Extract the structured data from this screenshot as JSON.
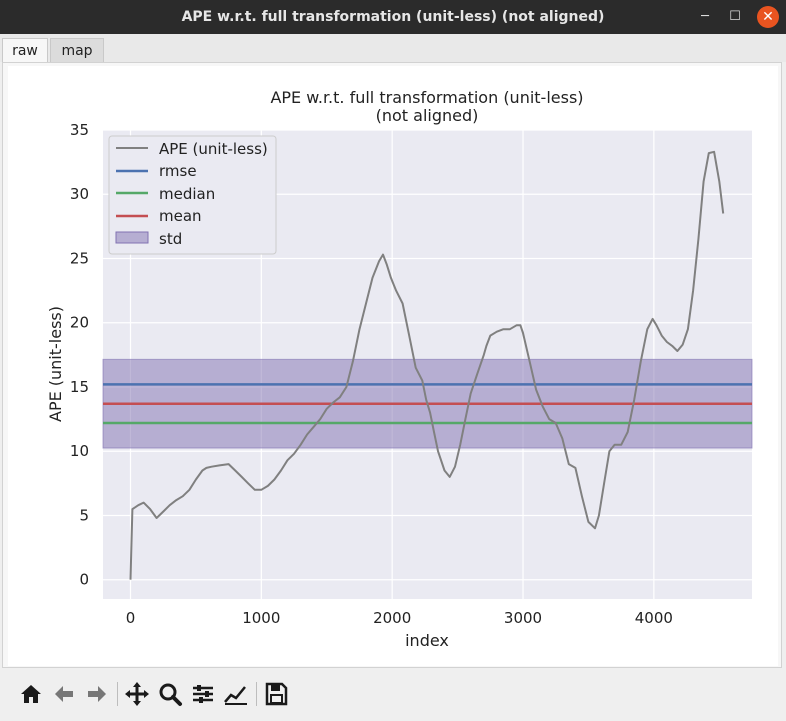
{
  "window": {
    "title": "APE w.r.t. full transformation (unit-less) (not aligned)",
    "min_icon": "─",
    "max_icon": "☐",
    "close_icon": "✕"
  },
  "tabs": [
    {
      "label": "raw"
    },
    {
      "label": "map"
    }
  ],
  "chart_data": {
    "type": "line",
    "title": "APE w.r.t. full transformation (unit-less)",
    "subtitle": "(not aligned)",
    "xlabel": "index",
    "ylabel": "APE (unit-less)",
    "xlim": [
      -210,
      4750
    ],
    "ylim": [
      -1.5,
      35
    ],
    "xticks": [
      0,
      1000,
      2000,
      3000,
      4000
    ],
    "yticks": [
      0,
      5,
      10,
      15,
      20,
      25,
      30,
      35
    ],
    "grid": true,
    "legend_position": "top-left",
    "background": "#eaeaf2",
    "series": [
      {
        "name": "APE (unit-less)",
        "color": "#808080",
        "x": [
          0,
          15,
          30,
          60,
          100,
          150,
          200,
          250,
          300,
          350,
          400,
          450,
          500,
          550,
          580,
          620,
          680,
          750,
          800,
          850,
          900,
          950,
          1000,
          1050,
          1100,
          1150,
          1200,
          1250,
          1300,
          1350,
          1400,
          1450,
          1500,
          1550,
          1600,
          1650,
          1700,
          1750,
          1800,
          1850,
          1900,
          1930,
          1960,
          1990,
          2030,
          2080,
          2130,
          2180,
          2230,
          2260,
          2290,
          2320,
          2350,
          2400,
          2440,
          2480,
          2520,
          2560,
          2600,
          2650,
          2700,
          2720,
          2750,
          2800,
          2850,
          2900,
          2950,
          2980,
          3000,
          3050,
          3100,
          3150,
          3200,
          3250,
          3300,
          3350,
          3400,
          3450,
          3500,
          3550,
          3580,
          3620,
          3660,
          3700,
          3750,
          3800,
          3850,
          3900,
          3950,
          3990,
          4020,
          4060,
          4100,
          4140,
          4180,
          4220,
          4260,
          4300,
          4340,
          4380,
          4420,
          4460,
          4500,
          4530
        ],
        "y": [
          0,
          5.5,
          5.6,
          5.8,
          6.0,
          5.5,
          4.8,
          5.3,
          5.8,
          6.2,
          6.5,
          7.0,
          7.8,
          8.5,
          8.7,
          8.8,
          8.9,
          9.0,
          8.5,
          8.0,
          7.5,
          7.0,
          7.0,
          7.3,
          7.8,
          8.5,
          9.3,
          9.8,
          10.5,
          11.3,
          11.9,
          12.5,
          13.3,
          13.8,
          14.2,
          15.0,
          17.0,
          19.5,
          21.5,
          23.5,
          24.8,
          25.3,
          24.5,
          23.5,
          22.5,
          21.5,
          19.0,
          16.5,
          15.5,
          14.0,
          13.0,
          11.5,
          10.0,
          8.5,
          8.0,
          8.8,
          10.5,
          12.5,
          14.5,
          16.0,
          17.5,
          18.2,
          19.0,
          19.3,
          19.5,
          19.5,
          19.8,
          19.8,
          19.2,
          17.0,
          14.8,
          13.5,
          12.5,
          12.2,
          11.0,
          9.0,
          8.7,
          6.5,
          4.5,
          4.0,
          5.0,
          7.5,
          10.0,
          10.5,
          10.5,
          11.5,
          14.0,
          17.0,
          19.5,
          20.3,
          19.8,
          19.0,
          18.5,
          18.2,
          17.8,
          18.3,
          19.5,
          22.5,
          26.5,
          31.0,
          33.2,
          33.3,
          31.0,
          28.5
        ]
      },
      {
        "name": "rmse",
        "color": "#4c72b0",
        "value": 15.2
      },
      {
        "name": "median",
        "color": "#55a868",
        "value": 12.2
      },
      {
        "name": "mean",
        "color": "#c44e52",
        "value": 13.7
      },
      {
        "name": "std",
        "color": "#8172b2",
        "range": [
          10.25,
          17.15
        ]
      }
    ]
  },
  "toolbar": {
    "icons": [
      "home-icon",
      "back-arrow-icon",
      "forward-arrow-icon",
      "pan-icon",
      "zoom-icon",
      "subplots-icon",
      "customize-icon",
      "save-icon"
    ]
  }
}
